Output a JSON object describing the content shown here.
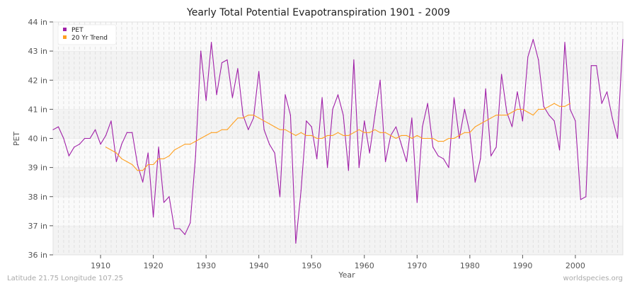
{
  "chart_data": {
    "type": "line",
    "title": "Yearly Total Potential Evapotranspiration 1901 - 2009",
    "xlabel": "Year",
    "ylabel": "PET",
    "xlim": [
      1901,
      2009
    ],
    "ylim": [
      36,
      44
    ],
    "y_ticks": [
      "36 in",
      "37 in",
      "38 in",
      "39 in",
      "40 in",
      "41 in",
      "42 in",
      "43 in",
      "44 in"
    ],
    "x_ticks": [
      "1910",
      "1920",
      "1930",
      "1940",
      "1950",
      "1960",
      "1970",
      "1980",
      "1990",
      "2000"
    ],
    "grid": true,
    "legend_position": "top-left",
    "series": [
      {
        "name": "PET",
        "color": "#a020a8",
        "x_start": 1901,
        "values": [
          40.3,
          40.4,
          40.0,
          39.4,
          39.7,
          39.8,
          40.0,
          40.0,
          40.3,
          39.8,
          40.1,
          40.6,
          39.2,
          39.8,
          40.2,
          40.2,
          39.1,
          38.5,
          39.5,
          37.3,
          39.7,
          37.8,
          38.0,
          36.9,
          36.9,
          36.7,
          37.1,
          39.4,
          43.0,
          41.3,
          43.3,
          41.5,
          42.6,
          42.7,
          41.4,
          42.4,
          40.8,
          40.3,
          40.7,
          42.3,
          40.3,
          39.8,
          39.5,
          38.0,
          41.5,
          40.8,
          36.4,
          38.2,
          40.6,
          40.4,
          39.3,
          41.4,
          39.0,
          41.0,
          41.5,
          40.8,
          38.9,
          42.7,
          39.0,
          40.6,
          39.5,
          40.8,
          42.0,
          39.2,
          40.1,
          40.4,
          39.8,
          39.2,
          40.7,
          37.8,
          40.4,
          41.2,
          39.7,
          39.4,
          39.3,
          39.0,
          41.4,
          40.0,
          41.0,
          40.2,
          38.5,
          39.3,
          41.7,
          39.4,
          39.7,
          42.2,
          40.9,
          40.4,
          41.6,
          40.6,
          42.8,
          43.4,
          42.7,
          41.1,
          40.8,
          40.6,
          39.6,
          43.3,
          41.0,
          40.6,
          37.9,
          38.0,
          42.5,
          42.5,
          41.2,
          41.6,
          40.7,
          40.0,
          43.4
        ]
      },
      {
        "name": "20 Yr Trend",
        "color": "#ffa020",
        "x_start": 1911,
        "values": [
          39.7,
          39.6,
          39.5,
          39.3,
          39.2,
          39.1,
          38.9,
          38.9,
          39.1,
          39.1,
          39.3,
          39.3,
          39.4,
          39.6,
          39.7,
          39.8,
          39.8,
          39.9,
          40.0,
          40.1,
          40.2,
          40.2,
          40.3,
          40.3,
          40.5,
          40.7,
          40.7,
          40.8,
          40.8,
          40.7,
          40.6,
          40.5,
          40.4,
          40.3,
          40.3,
          40.2,
          40.1,
          40.2,
          40.1,
          40.1,
          40.0,
          40.0,
          40.1,
          40.1,
          40.2,
          40.1,
          40.1,
          40.2,
          40.3,
          40.2,
          40.2,
          40.3,
          40.2,
          40.2,
          40.1,
          40.0,
          40.1,
          40.1,
          40.0,
          40.1,
          40.0,
          40.0,
          40.0,
          39.9,
          39.9,
          40.0,
          40.0,
          40.1,
          40.2,
          40.2,
          40.4,
          40.5,
          40.6,
          40.7,
          40.8,
          40.8,
          40.8,
          40.9,
          41.0,
          41.0,
          40.9,
          40.8,
          41.0,
          41.0,
          41.1,
          41.2,
          41.1,
          41.1,
          41.2
        ]
      }
    ]
  },
  "footer": {
    "location": "Latitude 21.75 Longitude 107.25",
    "source": "worldspecies.org"
  }
}
